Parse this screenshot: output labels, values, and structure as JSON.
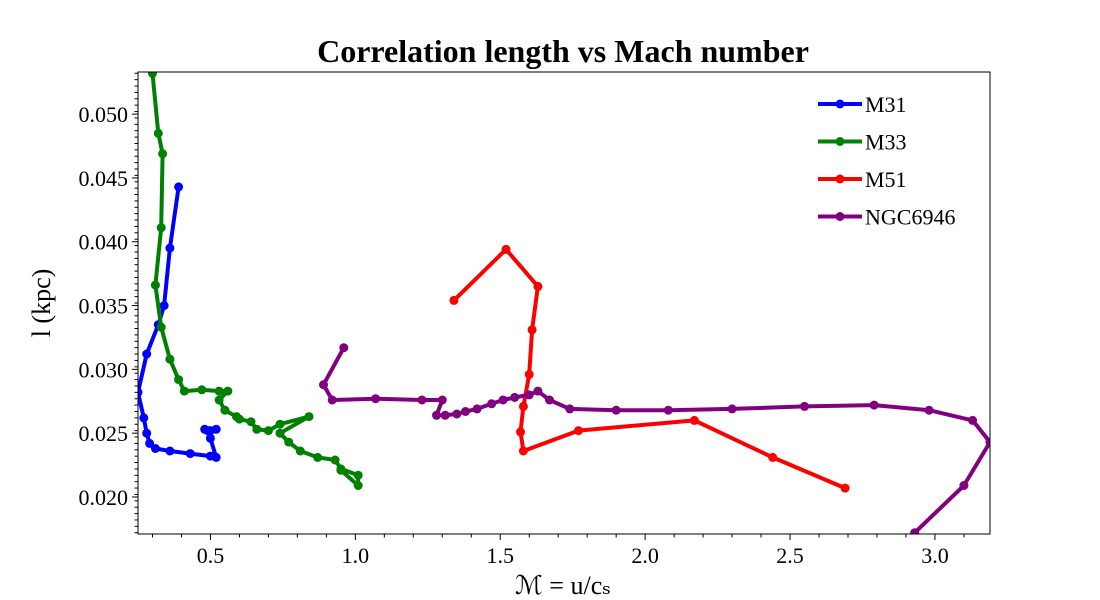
{
  "chart_data": {
    "type": "line",
    "title": "Correlation length vs Mach number",
    "xlabel": "ℳ = u/cₛ",
    "ylabel": "l (kpc)",
    "xlim": [
      0.25,
      3.19
    ],
    "ylim": [
      0.0171,
      0.0533
    ],
    "xticks": [
      0.5,
      1.0,
      1.5,
      2.0,
      2.5,
      3.0
    ],
    "xtick_labels": [
      "0.5",
      "1.0",
      "1.5",
      "2.0",
      "2.5",
      "3.0"
    ],
    "yticks": [
      0.02,
      0.025,
      0.03,
      0.035,
      0.04,
      0.045,
      0.05
    ],
    "ytick_labels": [
      "0.020",
      "0.025",
      "0.030",
      "0.035",
      "0.040",
      "0.045",
      "0.050"
    ],
    "grid": false,
    "legend_position": "top-right",
    "series": [
      {
        "name": "M31",
        "color": "#0000ff",
        "x": [
          0.39,
          0.36,
          0.34,
          0.32,
          0.28,
          0.25,
          0.27,
          0.28,
          0.29,
          0.31,
          0.36,
          0.43,
          0.5,
          0.52,
          0.5,
          0.49,
          0.48,
          0.5,
          0.52
        ],
        "y": [
          0.0443,
          0.0395,
          0.035,
          0.0335,
          0.0312,
          0.0282,
          0.0262,
          0.025,
          0.0242,
          0.0238,
          0.0236,
          0.0234,
          0.0232,
          0.0231,
          0.0246,
          0.0252,
          0.0253,
          0.0252,
          0.0253
        ]
      },
      {
        "name": "M33",
        "color": "#008000",
        "x": [
          0.3,
          0.32,
          0.335,
          0.33,
          0.31,
          0.33,
          0.36,
          0.39,
          0.41,
          0.47,
          0.53,
          0.56,
          0.53,
          0.55,
          0.59,
          0.6,
          0.64,
          0.66,
          0.7,
          0.74,
          0.84,
          0.74,
          0.77,
          0.81,
          0.87,
          0.93,
          0.95,
          1.01,
          1.01,
          0.95
        ],
        "y": [
          0.0532,
          0.0485,
          0.0469,
          0.0411,
          0.0366,
          0.0333,
          0.0308,
          0.0292,
          0.0283,
          0.0284,
          0.0283,
          0.0283,
          0.0276,
          0.0268,
          0.0263,
          0.0261,
          0.0259,
          0.0253,
          0.0252,
          0.0257,
          0.0263,
          0.025,
          0.0243,
          0.0236,
          0.0231,
          0.0229,
          0.0222,
          0.0217,
          0.0209,
          0.0221
        ]
      },
      {
        "name": "M51",
        "color": "#ff0000",
        "x": [
          1.34,
          1.52,
          1.63,
          1.61,
          1.6,
          1.58,
          1.57,
          1.58,
          1.77,
          2.17,
          2.44,
          2.69
        ],
        "y": [
          0.0354,
          0.0394,
          0.0365,
          0.0331,
          0.0296,
          0.0271,
          0.0251,
          0.0236,
          0.0252,
          0.026,
          0.0231,
          0.0207
        ]
      },
      {
        "name": "NGC6946",
        "color": "#800080",
        "x": [
          0.96,
          0.89,
          0.92,
          1.07,
          1.23,
          1.3,
          1.28,
          1.31,
          1.35,
          1.38,
          1.42,
          1.47,
          1.51,
          1.55,
          1.6,
          1.63,
          1.67,
          1.74,
          1.9,
          2.08,
          2.3,
          2.55,
          2.79,
          2.98,
          3.13,
          3.19,
          3.1,
          2.93
        ],
        "y": [
          0.0317,
          0.0288,
          0.0276,
          0.0277,
          0.0276,
          0.0276,
          0.0264,
          0.0264,
          0.0265,
          0.0267,
          0.0269,
          0.0273,
          0.0276,
          0.0278,
          0.028,
          0.0283,
          0.0276,
          0.0269,
          0.0268,
          0.0268,
          0.0269,
          0.0271,
          0.0272,
          0.0268,
          0.026,
          0.0243,
          0.0209,
          0.0172
        ]
      }
    ]
  }
}
